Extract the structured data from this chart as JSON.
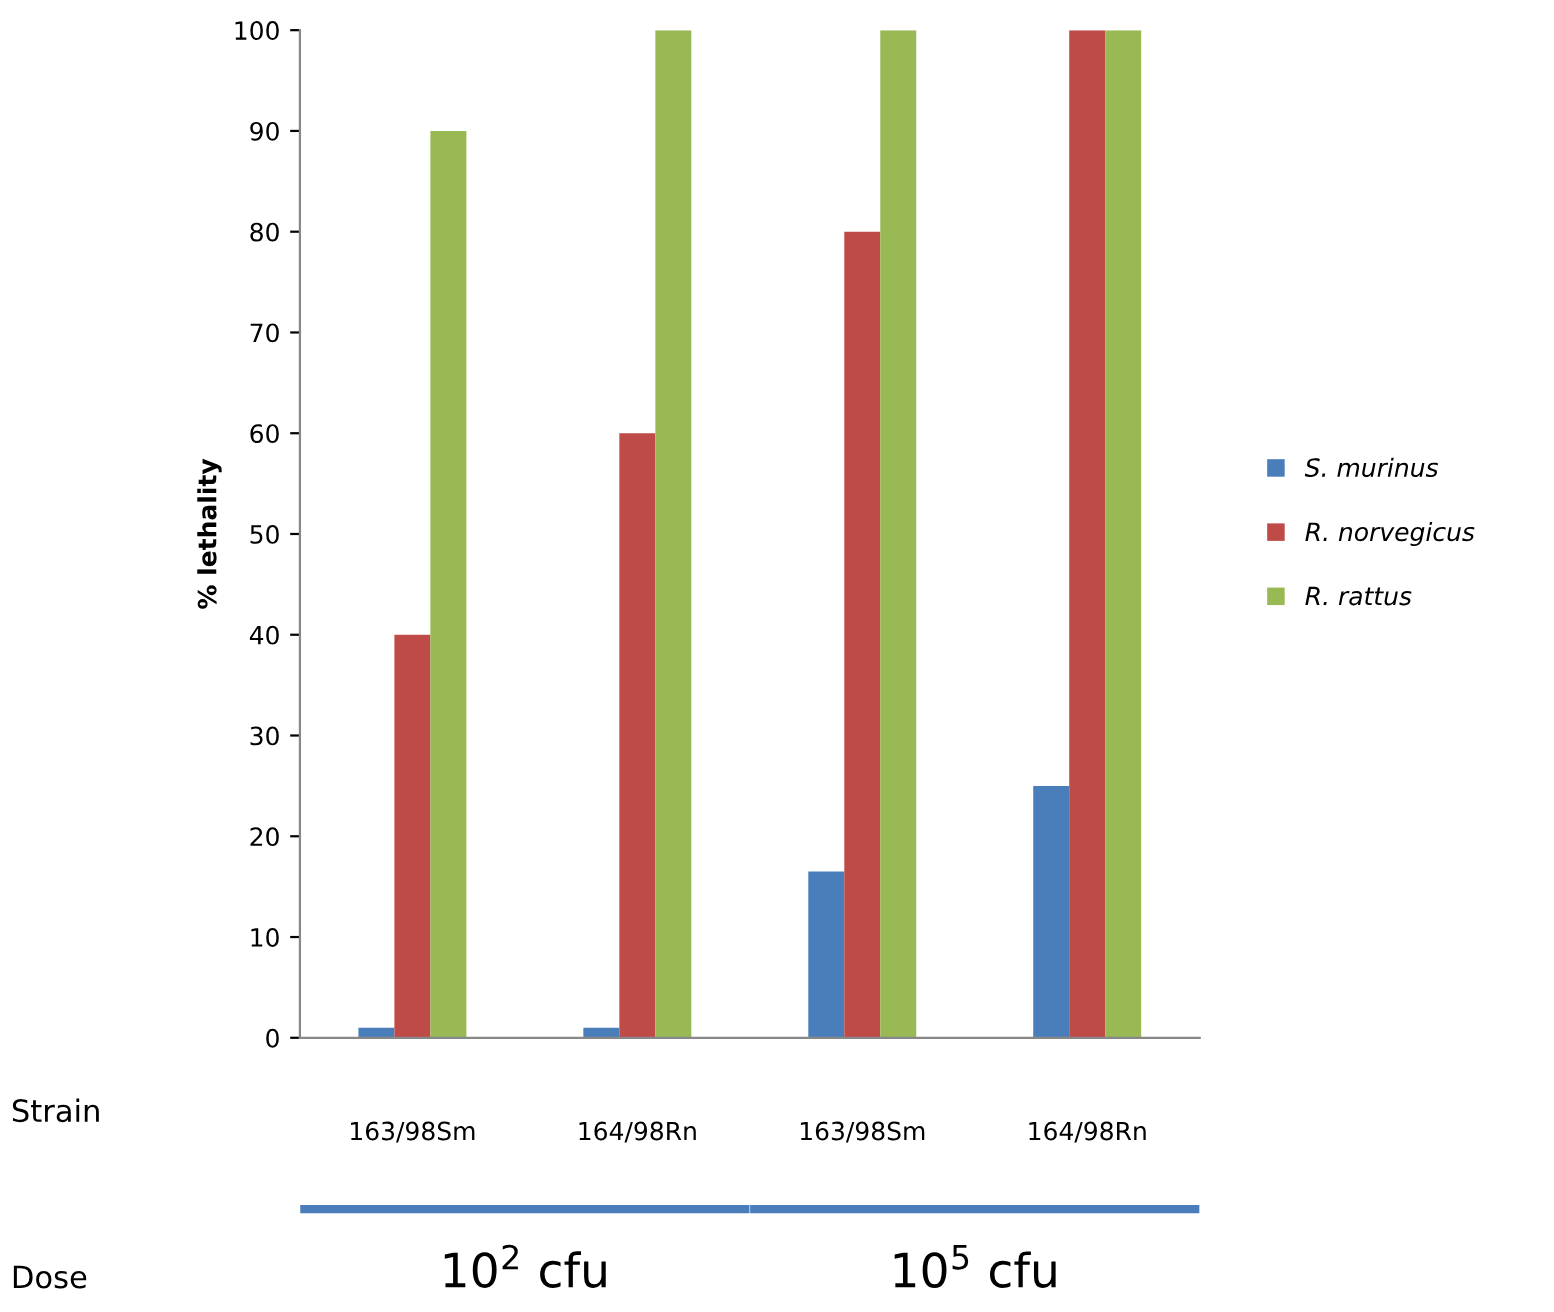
{
  "chart_data": {
    "type": "bar",
    "ylabel": "% lethality",
    "categories": [
      "163/98Sm",
      "164/98Rn",
      "163/98Sm",
      "164/98Rn"
    ],
    "series": [
      {
        "name": "S. murinus",
        "color": "#4a7ebb",
        "values": [
          1,
          1,
          16.5,
          25
        ]
      },
      {
        "name": "R. norvegicus",
        "color": "#be4b48",
        "values": [
          40,
          60,
          80,
          100
        ]
      },
      {
        "name": "R. rattus",
        "color": "#98b954",
        "values": [
          90,
          100,
          100,
          100
        ]
      }
    ],
    "ylim": [
      0,
      100
    ],
    "yticks": [
      0,
      10,
      20,
      30,
      40,
      50,
      60,
      70,
      80,
      90,
      100
    ],
    "grid": false,
    "legend": "right",
    "annotations": [
      "Strain",
      "Dose",
      "10$^{2}$ cfu",
      "10$^{5}$ cfu"
    ]
  }
}
